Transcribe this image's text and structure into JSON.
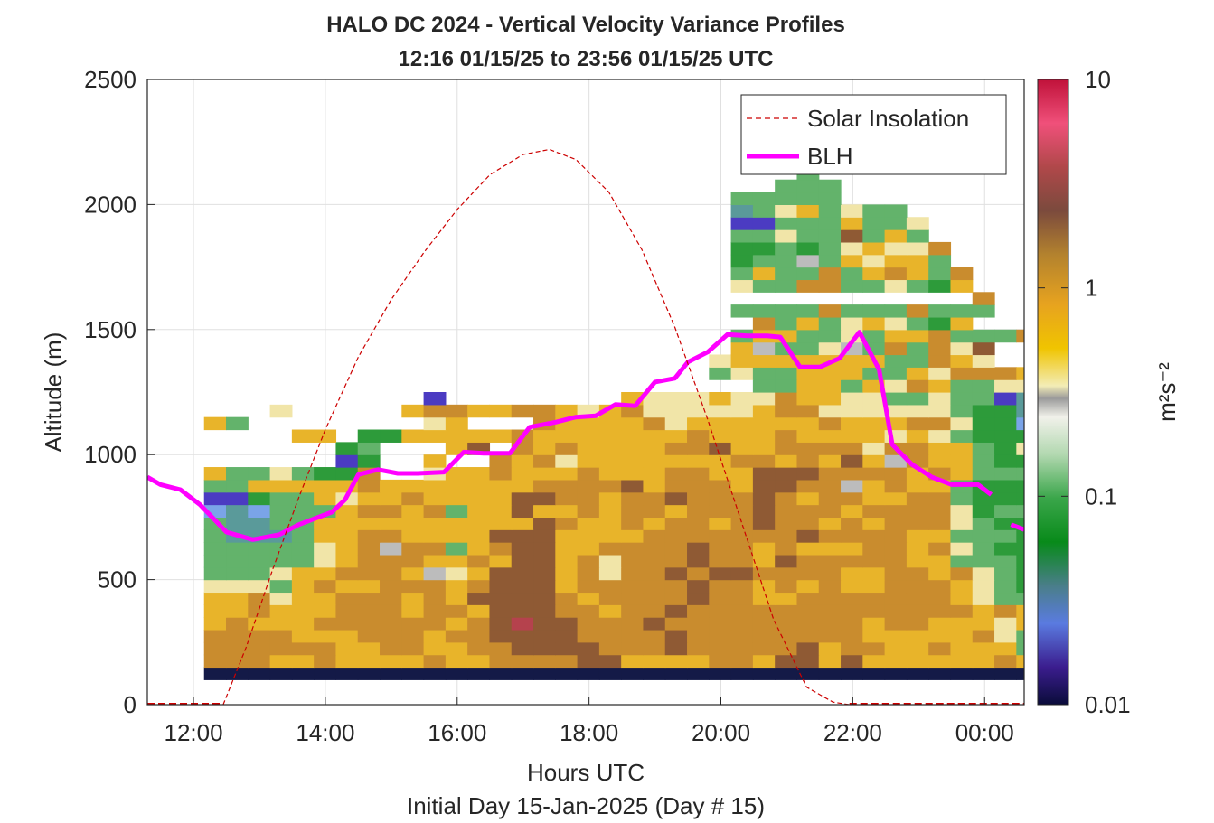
{
  "chart_data": {
    "type": "heatmap",
    "title": "HALO DC 2024 - Vertical Velocity Variance Profiles",
    "subtitle": "12:16 01/15/25 to 23:56 01/15/25  UTC",
    "xlabel": "Hours UTC",
    "xlabel2": "Initial Day 15-Jan-2025 (Day # 15)",
    "ylabel": "Altitude (m)",
    "colorbar_label": "m²s⁻²",
    "xlim": [
      11.3,
      24.6
    ],
    "ylim": [
      0,
      2500
    ],
    "x_ticks": [
      12,
      14,
      16,
      18,
      20,
      22,
      24
    ],
    "x_tick_labels": [
      "12:00",
      "14:00",
      "16:00",
      "18:00",
      "20:00",
      "22:00",
      "00:00"
    ],
    "y_ticks": [
      0,
      500,
      1000,
      1500,
      2000,
      2500
    ],
    "y_tick_labels": [
      "0",
      "500",
      "1000",
      "1500",
      "2000",
      "2500"
    ],
    "colorbar_ticks": [
      0.01,
      0.1,
      1,
      10
    ],
    "colorbar_tick_labels": [
      "0.01",
      "0.1",
      "1",
      "10"
    ],
    "colorbar_scale": "log",
    "grid": true,
    "legend": {
      "position": "top-right",
      "entries": [
        "Solar Insolation",
        "BLH"
      ]
    },
    "heatmap": {
      "x_start_hours": 12.16,
      "x_step_hours": 0.333,
      "altitude_start_m": 100,
      "altitude_step_m": 50,
      "levels": [
        "u",
        "e",
        "d",
        "i",
        "k",
        "j"
      ],
      "rows": [
        "uuuuuuuuuuuuuuuuuuuuuuuuuuuuuuuuuuuuuu",
        "dddeedeeeedeeddddiieeeeddeiieieeeeeede",
        "ddddddeeddeeddiiiidddidddddieddeedeeeg",
        "ddddeeedddeddiiiiddddiddddddddeeeeedfg",
        "edeeeddddddedijiidddidddddddddeddeeefe",
        "eedeeedddeddeiiiddeddidddddddddddddede",
        "eedfeedddedeiiiideddddiddeedddddddefgg",
        "fffgedeedddediiiedddddiddededeedddefgb",
        "gggfeedddehfeiiiedfddidiiddddeeddedfgb",
        "gggggfedddeedeiiedfdddiddeidddddeegggb",
        "gggggfedhddgediieeddddiddedeeeddedfgbb",
        "gcccgeeddeeeeiiieeeedddddddiddddeegggb",
        "gccggeeeeeeeeeeideededdediddededddfgbb",
        "lclgggeddedgeeieededdedddidddeddddfbgg",
        "aabggefeedeeeeiiddeddidddideddeeddgbbb",
        "ggeeeeedeeeeeeeddddiedddeiiddhedeegbbb",
        "eggfgbbd..feedeeedeeeddeeiiiddddedeggg",
        "......ab..e..dedfeeeeeeeddedeiehdeegbb",
        "......bg...ei.dedeeeeddieeddddfddeegbf",
        "....ee.bbeeeeedeeeeeeedeeedeeeefefgbbb",
        "eg........fe...deeeedfeeeeeedeeeddfbbl",
        "...f.....eddeeddefedfffffeddffffffgbbc",
        "..........a........efffeffdeeffggfggac",
        ".........................ggeegefdeggff",
        ".......................gfggeeeggefddde",
        ".......................feeeeeeeggdef..",
        "........................ehggfhgdgdfi..",
        "........................geeggfgeedgggd",
        ".........................dgegfefgbe...",
        "........................ggggdgggdggg..",
        "...................................d..",
        "........................fggddggfgbe...",
        "........................geggdgedegd...",
        "........................bgghgefeeg....",
        "........................bbgbgfeffd....",
        "........................ggfggigeg.....",
        "........................aagggeggf.....",
        "........................cgfegfgg......",
        "........................ggggg.........",
        "..........................ggg.........",
        "...........................g..........",
        "..........................a...........",
        ".........................c............",
        ".........................g............"
      ]
    },
    "series": [
      {
        "name": "BLH",
        "color": "#ff00ff",
        "x": [
          11.3,
          11.5,
          11.8,
          12.1,
          12.5,
          12.9,
          13.3,
          13.6,
          13.9,
          14.1,
          14.3,
          14.5,
          14.8,
          15.1,
          15.4,
          15.8,
          16.1,
          16.4,
          16.8,
          17.1,
          17.5,
          17.8,
          18.1,
          18.4,
          18.7,
          19.0,
          19.3,
          19.5,
          19.8,
          20.1,
          20.4,
          20.7,
          20.9,
          21.2,
          21.5,
          21.8,
          22.1,
          22.4,
          22.6,
          22.9,
          23.2,
          23.5,
          23.9,
          24.1
        ],
        "y": [
          910,
          880,
          860,
          800,
          690,
          660,
          680,
          720,
          750,
          770,
          820,
          920,
          940,
          925,
          925,
          930,
          1010,
          1005,
          1005,
          1110,
          1130,
          1150,
          1155,
          1200,
          1195,
          1290,
          1305,
          1370,
          1410,
          1480,
          1475,
          1475,
          1470,
          1350,
          1350,
          1385,
          1490,
          1340,
          1040,
          960,
          910,
          880,
          880,
          840
        ]
      },
      {
        "name": "BLH-late",
        "color": "#ff00ff",
        "x": [
          24.4,
          24.6
        ],
        "y": [
          720,
          700
        ]
      },
      {
        "name": "Solar Insolation",
        "color": "#cc0000",
        "style": "dashed",
        "x": [
          12.45,
          12.8,
          13.2,
          13.6,
          14.0,
          14.5,
          15.0,
          15.5,
          16.0,
          16.5,
          17.0,
          17.4,
          17.8,
          18.3,
          18.8,
          19.3,
          19.8,
          20.3,
          20.8,
          21.3,
          21.7,
          21.95
        ],
        "y": [
          0,
          230,
          540,
          830,
          1100,
          1390,
          1620,
          1810,
          1980,
          2120,
          2200,
          2220,
          2180,
          2050,
          1820,
          1510,
          1140,
          740,
          340,
          70,
          10,
          0
        ]
      }
    ],
    "solar_baseline_y": 0
  },
  "colors": {
    "u": "#141a47",
    "e": "#e8b42a",
    "d": "#c98c2e",
    "i": "#8f5a34",
    "k": "#a8a8a8",
    "j": "#b5424d",
    "f": "#f1e5a8",
    "g": "#63b36b",
    "b": "#2d9b3a",
    "c": "#5a9a9a",
    "a": "#4b3bc2",
    "h": "#bcbcbc",
    "l": "#7aa4e8"
  }
}
